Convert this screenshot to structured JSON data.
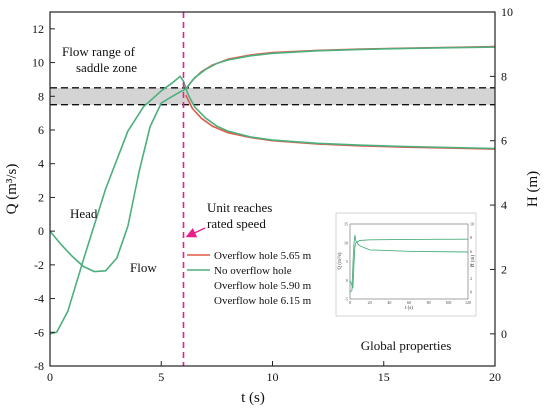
{
  "chart_data": {
    "type": "line",
    "xlabel": "t (s)",
    "ylabel_left": "Q (m³/s)",
    "ylabel_right": "H (m)",
    "xlim": [
      0,
      20
    ],
    "ylim_left": [
      -8,
      13
    ],
    "ylim_right": [
      -1,
      10
    ],
    "x_ticks": [
      0,
      5,
      10,
      15,
      20
    ],
    "y_left_ticks": [
      -8,
      -6,
      -4,
      -2,
      0,
      2,
      4,
      6,
      8,
      10,
      12
    ],
    "y_right_ticks": [
      0,
      2,
      4,
      6,
      8,
      10
    ],
    "grid": false,
    "series": [
      {
        "name": "Overflow hole 5.65 m",
        "color": "#e05a4a",
        "axis": "left",
        "kind": "flow",
        "x": [
          6.1,
          6.4,
          6.8,
          7.3,
          8,
          9,
          10,
          12,
          14,
          16,
          18,
          20
        ],
        "y": [
          8.4,
          8.95,
          9.45,
          9.85,
          10.2,
          10.45,
          10.6,
          10.72,
          10.8,
          10.85,
          10.9,
          10.95
        ]
      },
      {
        "name": "Overflow hole 5.65 m",
        "color": "#e05a4a",
        "axis": "right",
        "kind": "head",
        "x": [
          6.1,
          6.4,
          6.8,
          7.3,
          8,
          9,
          10,
          12,
          14,
          16,
          18,
          20
        ],
        "y": [
          7.42,
          7.0,
          6.7,
          6.45,
          6.25,
          6.1,
          6.0,
          5.9,
          5.84,
          5.8,
          5.77,
          5.74
        ]
      },
      {
        "name": "No overflow hole",
        "color": "#4caf7d",
        "axis": "left",
        "kind": "flow",
        "x": [
          0,
          0.5,
          1,
          1.5,
          2,
          2.5,
          3,
          3.5,
          4,
          4.5,
          5,
          5.5,
          5.9,
          6.0,
          6.2,
          6.5,
          7,
          7.5,
          8,
          9,
          10,
          12,
          14,
          16,
          18,
          20
        ],
        "y": [
          0,
          -0.8,
          -1.5,
          -2.1,
          -2.4,
          -2.35,
          -1.6,
          0.3,
          3.5,
          6.2,
          7.6,
          8.0,
          8.3,
          8.35,
          8.6,
          9.1,
          9.6,
          9.95,
          10.15,
          10.4,
          10.55,
          10.7,
          10.78,
          10.84,
          10.88,
          10.92
        ]
      },
      {
        "name": "No overflow hole",
        "color": "#4caf7d",
        "axis": "right",
        "kind": "head",
        "x": [
          0,
          0.3,
          0.8,
          1.5,
          2.5,
          3.5,
          4.2,
          5,
          5.5,
          5.85,
          6.0,
          6.2,
          6.5,
          7,
          7.5,
          8,
          9,
          10,
          12,
          14,
          16,
          18,
          20
        ],
        "y": [
          0,
          0.05,
          0.7,
          2.3,
          4.5,
          6.3,
          7.05,
          7.55,
          7.8,
          8.0,
          7.85,
          7.45,
          7.05,
          6.7,
          6.45,
          6.3,
          6.12,
          6.02,
          5.92,
          5.86,
          5.82,
          5.79,
          5.76
        ]
      }
    ],
    "legend_entries": [
      "Overflow hole 5.65 m",
      "No overflow hole",
      "Overflow hole 5.90 m",
      "Overflow hole 6.15 m"
    ],
    "saddle_zone": {
      "q_low": 7.5,
      "q_high": 8.5
    },
    "rated_speed_time": 6,
    "annotations": {
      "saddle_line1": "Flow range of",
      "saddle_line2": "saddle zone",
      "head": "Head",
      "flow": "Flow",
      "unit_line1": "Unit reaches",
      "unit_line2": "rated speed"
    },
    "inset": {
      "caption": "Global properties",
      "xlabel": "t (s)",
      "ylabel_left": "Q (m³/s)",
      "ylabel_right": "H (m)",
      "x_ticks": [
        0,
        20,
        40,
        60,
        80,
        100,
        120
      ],
      "y_left_ticks": [
        -5,
        0,
        5,
        10,
        15
      ],
      "y_right_ticks": [
        0,
        2,
        4,
        6,
        8,
        10
      ]
    }
  }
}
